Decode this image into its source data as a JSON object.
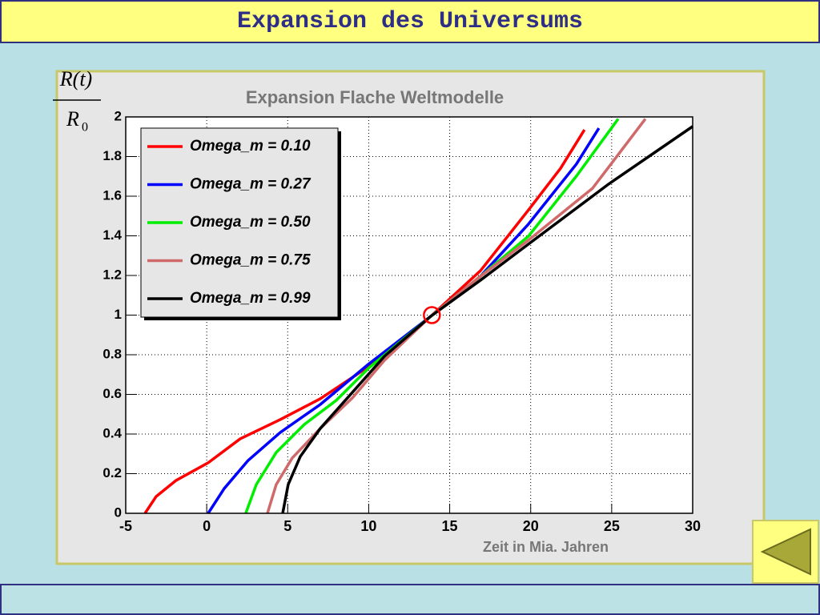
{
  "header": {
    "title": "Expansion des Universums"
  },
  "chart_data": {
    "type": "line",
    "title": "Expansion Flache Weltmodelle",
    "xlabel": "Zeit in Mia. Jahren",
    "ylabel_numerator": "R(t)",
    "ylabel_denominator": "R",
    "ylabel_denominator_subscript": "0",
    "xlim": [
      -5,
      30
    ],
    "ylim": [
      0,
      2
    ],
    "xticks": [
      -5,
      0,
      5,
      10,
      15,
      20,
      25,
      30
    ],
    "yticks": [
      0,
      0.2,
      0.4,
      0.6,
      0.8,
      1,
      1.2,
      1.4,
      1.6,
      1.8,
      2
    ],
    "grid": true,
    "legend": "upper left",
    "series": [
      {
        "name": "Omega_m = 0.10",
        "color": "#ff0000",
        "x": [
          -3.81,
          -3.12,
          -1.89,
          0.09,
          2.07,
          4.54,
          7.01,
          9.98,
          13.83,
          16.9,
          19.86,
          21.84,
          23.32
        ],
        "values": [
          0,
          0.085,
          0.166,
          0.255,
          0.376,
          0.473,
          0.578,
          0.739,
          0.994,
          1.224,
          1.53,
          1.74,
          1.935
        ]
      },
      {
        "name": "Omega_m = 0.27",
        "color": "#0000ff",
        "x": [
          0.09,
          1.08,
          2.56,
          4.54,
          7.01,
          9.98,
          13.83,
          16.9,
          19.86,
          22.82,
          24.21
        ],
        "values": [
          0,
          0.125,
          0.267,
          0.408,
          0.549,
          0.752,
          0.994,
          1.196,
          1.459,
          1.762,
          1.943
        ]
      },
      {
        "name": "Omega_m = 0.50",
        "color": "#00ee00",
        "x": [
          2.41,
          3.06,
          4.29,
          6.02,
          8.0,
          9.98,
          13.83,
          16.9,
          19.86,
          22.82,
          25.4
        ],
        "values": [
          0,
          0.145,
          0.307,
          0.448,
          0.57,
          0.731,
          0.994,
          1.196,
          1.398,
          1.701,
          1.99
        ]
      },
      {
        "name": "Omega_m = 0.75",
        "color": "#d06a6a",
        "x": [
          3.75,
          4.29,
          5.28,
          7.01,
          8.99,
          10.97,
          13.83,
          16.9,
          19.86,
          23.82,
          27.08
        ],
        "values": [
          0,
          0.145,
          0.279,
          0.428,
          0.582,
          0.772,
          0.994,
          1.196,
          1.378,
          1.64,
          1.99
        ]
      },
      {
        "name": "Omega_m = 0.99",
        "color": "#000000",
        "x": [
          4.69,
          5.03,
          5.78,
          7.01,
          8.99,
          10.97,
          13.83,
          16.9,
          19.86,
          24.81,
          30
        ],
        "values": [
          0,
          0.145,
          0.287,
          0.428,
          0.61,
          0.792,
          0.994,
          1.176,
          1.358,
          1.661,
          1.952
        ]
      }
    ],
    "marker": {
      "x": 13.9,
      "y": 1,
      "color": "#ff0000"
    }
  }
}
